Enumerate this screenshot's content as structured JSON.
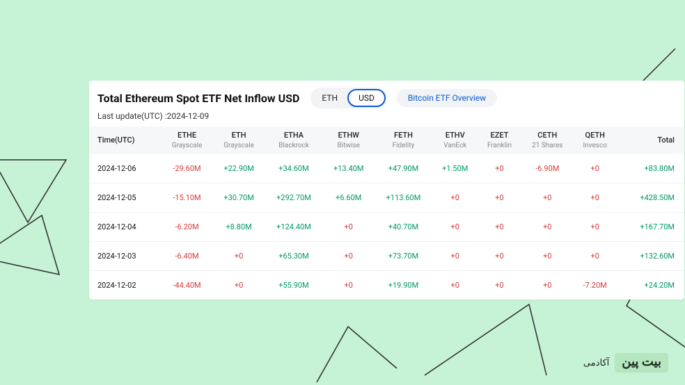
{
  "header": {
    "title": "Total Ethereum Spot ETF Net Inflow USD",
    "tabs": {
      "eth": "ETH",
      "usd": "USD"
    },
    "active_tab": "usd",
    "overview_label": "Bitcoin ETF Overview",
    "subtitle_prefix": "Last update(UTC) :",
    "subtitle_date": "2024-12-09"
  },
  "colors": {
    "positive": "#009966",
    "negative": "#d83a3a",
    "zero": "#d83a3a",
    "page_bg": "#c6f2d6",
    "card_bg": "#ffffff",
    "header_bg": "#f6f7f9",
    "accent": "#0b5bd3",
    "deco_line": "#2c2c2c"
  },
  "columns": [
    {
      "key": "time",
      "label": "Time(UTC)",
      "sub": ""
    },
    {
      "key": "ethe",
      "label": "ETHE",
      "sub": "Grayscale"
    },
    {
      "key": "eth",
      "label": "ETH",
      "sub": "Grayscale"
    },
    {
      "key": "etha",
      "label": "ETHA",
      "sub": "Blackrock"
    },
    {
      "key": "ethw",
      "label": "ETHW",
      "sub": "Bitwise"
    },
    {
      "key": "feth",
      "label": "FETH",
      "sub": "Fidelity"
    },
    {
      "key": "ethv",
      "label": "ETHV",
      "sub": "VanEck"
    },
    {
      "key": "ezet",
      "label": "EZET",
      "sub": "Franklin"
    },
    {
      "key": "ceth",
      "label": "CETH",
      "sub": "21 Shares"
    },
    {
      "key": "qeth",
      "label": "QETH",
      "sub": "Invesco"
    },
    {
      "key": "total",
      "label": "Total",
      "sub": ""
    }
  ],
  "rows": [
    {
      "time": "2024-12-06",
      "cells": [
        {
          "t": "-29.60M",
          "k": "neg"
        },
        {
          "t": "+22.90M",
          "k": "pos"
        },
        {
          "t": "+34.60M",
          "k": "pos"
        },
        {
          "t": "+13.40M",
          "k": "pos"
        },
        {
          "t": "+47.90M",
          "k": "pos"
        },
        {
          "t": "+1.50M",
          "k": "pos"
        },
        {
          "t": "+0",
          "k": "zero"
        },
        {
          "t": "-6.90M",
          "k": "neg"
        },
        {
          "t": "+0",
          "k": "zero"
        },
        {
          "t": "+83.80M",
          "k": "pos"
        }
      ]
    },
    {
      "time": "2024-12-05",
      "cells": [
        {
          "t": "-15.10M",
          "k": "neg"
        },
        {
          "t": "+30.70M",
          "k": "pos"
        },
        {
          "t": "+292.70M",
          "k": "pos"
        },
        {
          "t": "+6.60M",
          "k": "pos"
        },
        {
          "t": "+113.60M",
          "k": "pos"
        },
        {
          "t": "+0",
          "k": "zero"
        },
        {
          "t": "+0",
          "k": "zero"
        },
        {
          "t": "+0",
          "k": "zero"
        },
        {
          "t": "+0",
          "k": "zero"
        },
        {
          "t": "+428.50M",
          "k": "pos"
        }
      ]
    },
    {
      "time": "2024-12-04",
      "cells": [
        {
          "t": "-6.20M",
          "k": "neg"
        },
        {
          "t": "+8.80M",
          "k": "pos"
        },
        {
          "t": "+124.40M",
          "k": "pos"
        },
        {
          "t": "+0",
          "k": "zero"
        },
        {
          "t": "+40.70M",
          "k": "pos"
        },
        {
          "t": "+0",
          "k": "zero"
        },
        {
          "t": "+0",
          "k": "zero"
        },
        {
          "t": "+0",
          "k": "zero"
        },
        {
          "t": "+0",
          "k": "zero"
        },
        {
          "t": "+167.70M",
          "k": "pos"
        }
      ]
    },
    {
      "time": "2024-12-03",
      "cells": [
        {
          "t": "-6.40M",
          "k": "neg"
        },
        {
          "t": "+0",
          "k": "zero"
        },
        {
          "t": "+65.30M",
          "k": "pos"
        },
        {
          "t": "+0",
          "k": "zero"
        },
        {
          "t": "+73.70M",
          "k": "pos"
        },
        {
          "t": "+0",
          "k": "zero"
        },
        {
          "t": "+0",
          "k": "zero"
        },
        {
          "t": "+0",
          "k": "zero"
        },
        {
          "t": "+0",
          "k": "zero"
        },
        {
          "t": "+132.60M",
          "k": "pos"
        }
      ]
    },
    {
      "time": "2024-12-02",
      "cells": [
        {
          "t": "-44.40M",
          "k": "neg"
        },
        {
          "t": "+0",
          "k": "zero"
        },
        {
          "t": "+55.90M",
          "k": "pos"
        },
        {
          "t": "+0",
          "k": "zero"
        },
        {
          "t": "+19.90M",
          "k": "pos"
        },
        {
          "t": "+0",
          "k": "zero"
        },
        {
          "t": "+0",
          "k": "zero"
        },
        {
          "t": "+0",
          "k": "zero"
        },
        {
          "t": "-7.20M",
          "k": "neg"
        },
        {
          "t": "+24.20M",
          "k": "pos"
        }
      ]
    }
  ],
  "logo": {
    "brand": "بیت پین",
    "suffix": "آکادمی"
  }
}
